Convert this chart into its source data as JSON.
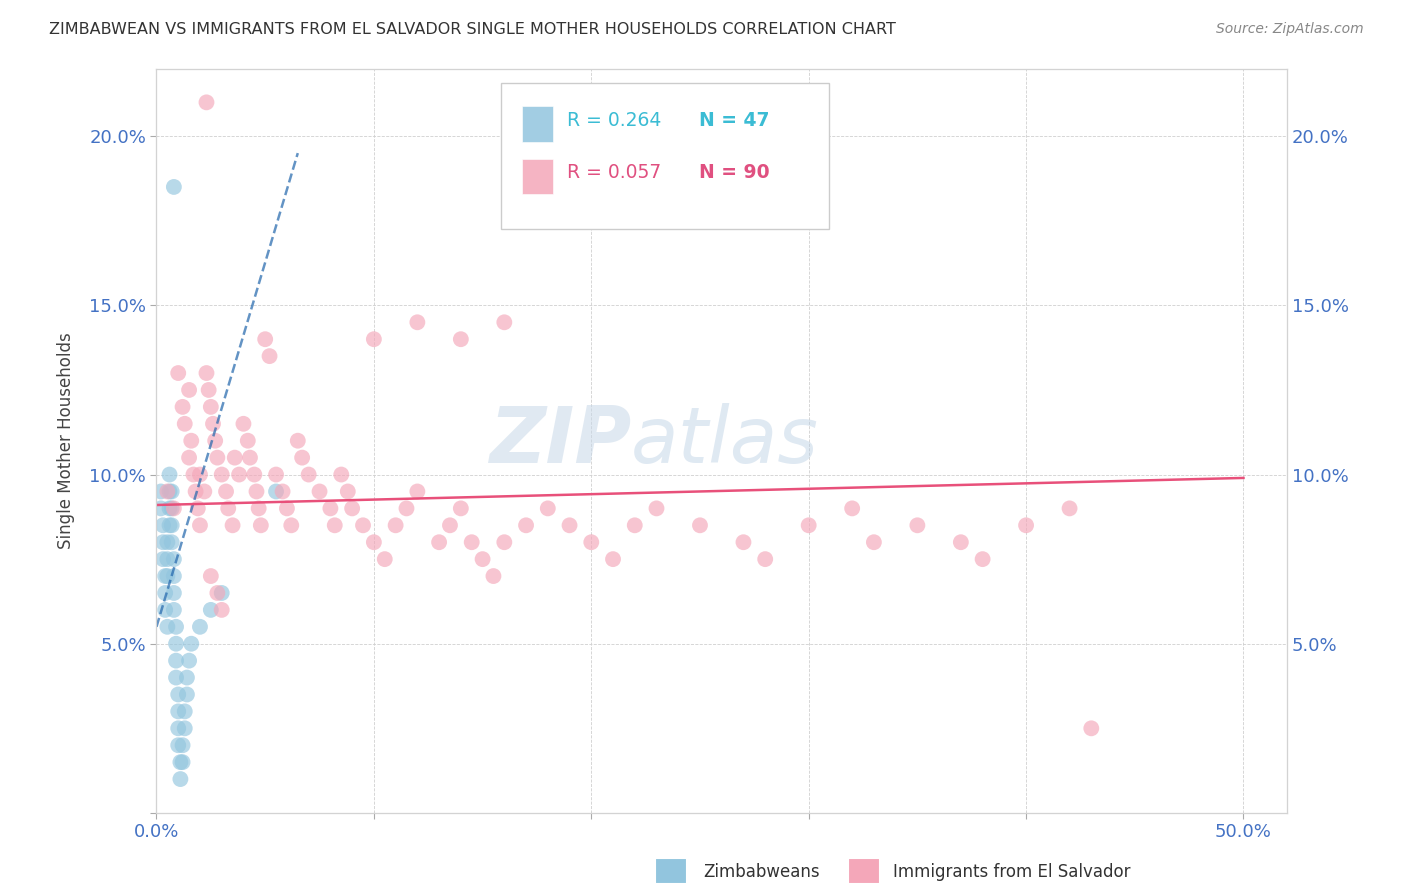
{
  "title": "ZIMBABWEAN VS IMMIGRANTS FROM EL SALVADOR SINGLE MOTHER HOUSEHOLDS CORRELATION CHART",
  "source": "Source: ZipAtlas.com",
  "ylabel": "Single Mother Households",
  "xlim": [
    0.0,
    0.52
  ],
  "ylim": [
    0.0,
    0.22
  ],
  "xtick_pos": [
    0.0,
    0.1,
    0.2,
    0.3,
    0.4,
    0.5
  ],
  "xticklabels": [
    "0.0%",
    "",
    "",
    "",
    "",
    "50.0%"
  ],
  "ytick_pos": [
    0.0,
    0.05,
    0.1,
    0.15,
    0.2
  ],
  "yticklabels": [
    "",
    "5.0%",
    "10.0%",
    "15.0%",
    "20.0%"
  ],
  "blue_color": "#92c5de",
  "pink_color": "#f4a7b9",
  "blue_line_color": "#2166ac",
  "pink_line_color": "#e8507a",
  "watermark_zip": "ZIP",
  "watermark_atlas": "atlas",
  "legend_text_color": "#4db8d4",
  "blue_scatter": [
    [
      0.002,
      0.095
    ],
    [
      0.002,
      0.09
    ],
    [
      0.003,
      0.085
    ],
    [
      0.003,
      0.08
    ],
    [
      0.003,
      0.075
    ],
    [
      0.004,
      0.07
    ],
    [
      0.004,
      0.065
    ],
    [
      0.004,
      0.06
    ],
    [
      0.005,
      0.055
    ],
    [
      0.005,
      0.07
    ],
    [
      0.005,
      0.075
    ],
    [
      0.005,
      0.08
    ],
    [
      0.006,
      0.085
    ],
    [
      0.006,
      0.09
    ],
    [
      0.006,
      0.095
    ],
    [
      0.006,
      0.1
    ],
    [
      0.007,
      0.095
    ],
    [
      0.007,
      0.09
    ],
    [
      0.007,
      0.085
    ],
    [
      0.007,
      0.08
    ],
    [
      0.008,
      0.075
    ],
    [
      0.008,
      0.07
    ],
    [
      0.008,
      0.065
    ],
    [
      0.008,
      0.06
    ],
    [
      0.009,
      0.055
    ],
    [
      0.009,
      0.05
    ],
    [
      0.009,
      0.045
    ],
    [
      0.009,
      0.04
    ],
    [
      0.01,
      0.035
    ],
    [
      0.01,
      0.03
    ],
    [
      0.01,
      0.025
    ],
    [
      0.01,
      0.02
    ],
    [
      0.011,
      0.015
    ],
    [
      0.011,
      0.01
    ],
    [
      0.012,
      0.015
    ],
    [
      0.012,
      0.02
    ],
    [
      0.013,
      0.025
    ],
    [
      0.013,
      0.03
    ],
    [
      0.014,
      0.035
    ],
    [
      0.014,
      0.04
    ],
    [
      0.015,
      0.045
    ],
    [
      0.016,
      0.05
    ],
    [
      0.02,
      0.055
    ],
    [
      0.025,
      0.06
    ],
    [
      0.03,
      0.065
    ],
    [
      0.008,
      0.185
    ],
    [
      0.055,
      0.095
    ]
  ],
  "pink_scatter": [
    [
      0.005,
      0.095
    ],
    [
      0.008,
      0.09
    ],
    [
      0.01,
      0.13
    ],
    [
      0.012,
      0.12
    ],
    [
      0.013,
      0.115
    ],
    [
      0.015,
      0.125
    ],
    [
      0.015,
      0.105
    ],
    [
      0.016,
      0.11
    ],
    [
      0.017,
      0.1
    ],
    [
      0.018,
      0.095
    ],
    [
      0.019,
      0.09
    ],
    [
      0.02,
      0.085
    ],
    [
      0.02,
      0.1
    ],
    [
      0.022,
      0.095
    ],
    [
      0.023,
      0.13
    ],
    [
      0.024,
      0.125
    ],
    [
      0.025,
      0.12
    ],
    [
      0.026,
      0.115
    ],
    [
      0.027,
      0.11
    ],
    [
      0.028,
      0.105
    ],
    [
      0.03,
      0.1
    ],
    [
      0.032,
      0.095
    ],
    [
      0.033,
      0.09
    ],
    [
      0.035,
      0.085
    ],
    [
      0.036,
      0.105
    ],
    [
      0.038,
      0.1
    ],
    [
      0.04,
      0.115
    ],
    [
      0.042,
      0.11
    ],
    [
      0.043,
      0.105
    ],
    [
      0.045,
      0.1
    ],
    [
      0.046,
      0.095
    ],
    [
      0.047,
      0.09
    ],
    [
      0.048,
      0.085
    ],
    [
      0.05,
      0.14
    ],
    [
      0.052,
      0.135
    ],
    [
      0.055,
      0.1
    ],
    [
      0.058,
      0.095
    ],
    [
      0.06,
      0.09
    ],
    [
      0.062,
      0.085
    ],
    [
      0.065,
      0.11
    ],
    [
      0.067,
      0.105
    ],
    [
      0.07,
      0.1
    ],
    [
      0.075,
      0.095
    ],
    [
      0.08,
      0.09
    ],
    [
      0.082,
      0.085
    ],
    [
      0.085,
      0.1
    ],
    [
      0.088,
      0.095
    ],
    [
      0.09,
      0.09
    ],
    [
      0.095,
      0.085
    ],
    [
      0.1,
      0.08
    ],
    [
      0.105,
      0.075
    ],
    [
      0.11,
      0.085
    ],
    [
      0.115,
      0.09
    ],
    [
      0.12,
      0.095
    ],
    [
      0.13,
      0.08
    ],
    [
      0.135,
      0.085
    ],
    [
      0.14,
      0.09
    ],
    [
      0.145,
      0.08
    ],
    [
      0.15,
      0.075
    ],
    [
      0.155,
      0.07
    ],
    [
      0.16,
      0.08
    ],
    [
      0.17,
      0.085
    ],
    [
      0.18,
      0.09
    ],
    [
      0.19,
      0.085
    ],
    [
      0.2,
      0.08
    ],
    [
      0.21,
      0.075
    ],
    [
      0.22,
      0.085
    ],
    [
      0.23,
      0.09
    ],
    [
      0.25,
      0.085
    ],
    [
      0.27,
      0.08
    ],
    [
      0.28,
      0.075
    ],
    [
      0.3,
      0.085
    ],
    [
      0.32,
      0.09
    ],
    [
      0.33,
      0.08
    ],
    [
      0.35,
      0.085
    ],
    [
      0.37,
      0.08
    ],
    [
      0.38,
      0.075
    ],
    [
      0.4,
      0.085
    ],
    [
      0.42,
      0.09
    ],
    [
      0.023,
      0.21
    ],
    [
      0.1,
      0.14
    ],
    [
      0.12,
      0.145
    ],
    [
      0.14,
      0.14
    ],
    [
      0.16,
      0.145
    ],
    [
      0.025,
      0.07
    ],
    [
      0.028,
      0.065
    ],
    [
      0.03,
      0.06
    ],
    [
      0.43,
      0.025
    ]
  ],
  "blue_line_x": [
    0.0,
    0.065
  ],
  "blue_line_y_start": 0.055,
  "blue_line_y_end": 0.195,
  "pink_line_x": [
    0.0,
    0.5
  ],
  "pink_line_y_start": 0.091,
  "pink_line_y_end": 0.099
}
